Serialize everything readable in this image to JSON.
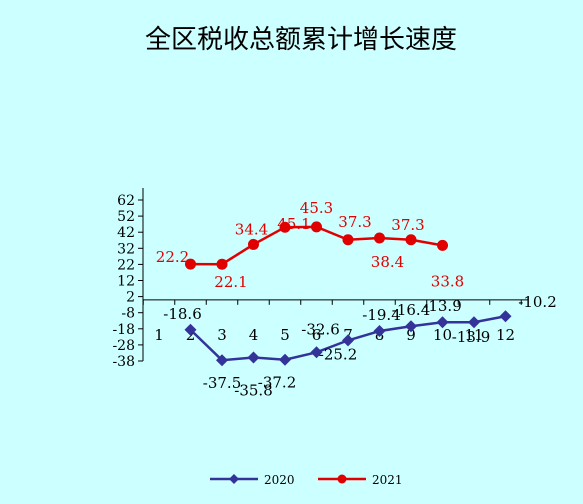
{
  "chart_data": {
    "type": "line",
    "title": "全区税收总额累计增长速度",
    "categories": [
      "1",
      "2",
      "3",
      "4",
      "5",
      "6",
      "7",
      "8",
      "9",
      "10",
      "11",
      "12"
    ],
    "yticks": [
      62,
      52,
      42,
      32,
      22,
      12,
      2,
      -8,
      -18,
      -28,
      -38
    ],
    "ylim": [
      -38,
      62
    ],
    "series": [
      {
        "name": "2020",
        "color": "#333399",
        "marker": "diamond",
        "values": [
          null,
          -18.6,
          -37.5,
          -35.8,
          -37.2,
          -32.6,
          -25.2,
          -19.4,
          -16.4,
          -13.9,
          -13.9,
          -10.2
        ],
        "labels": [
          null,
          "-18.6",
          "-37.5",
          "-35.8",
          "-37.2",
          "-32.6",
          "-25.2",
          "-19.4",
          "-16.4",
          "-13.9",
          "-13.9",
          "-10.2"
        ]
      },
      {
        "name": "2021",
        "color": "#e00000",
        "marker": "circle",
        "values": [
          null,
          22.2,
          22.1,
          34.4,
          45.1,
          45.3,
          37.3,
          38.4,
          37.3,
          33.8,
          null,
          null
        ],
        "labels": [
          null,
          "22.2",
          "22.1",
          "34.4",
          "45.1",
          "45.3",
          "37.3",
          "38.4",
          "37.3",
          "33.8",
          null,
          null
        ]
      }
    ],
    "legend": {
      "position": "bottom",
      "items": [
        "2020",
        "2021"
      ]
    }
  }
}
